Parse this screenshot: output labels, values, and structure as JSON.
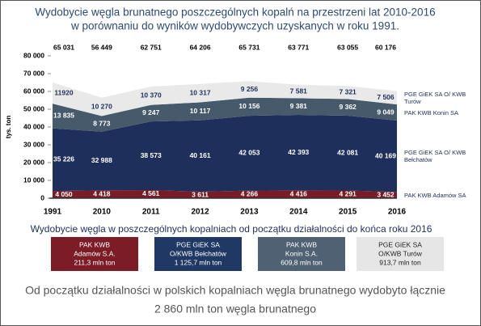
{
  "chart_data": {
    "type": "stacked-area",
    "title": [
      "Wydobycie węgla brunatnego poszczególnych kopalń na przestrzeni lat 2010-2016",
      "w porównaniu do wyników wydobywczych uzyskanych w roku 1991."
    ],
    "y_label": "tys. ton",
    "categories": [
      "1991",
      "2010",
      "2011",
      "2012",
      "2013",
      "2014",
      "2015",
      "2016"
    ],
    "series": [
      {
        "name": "PAK KWB Adamów SA",
        "color": "#7a1c25",
        "label_color": "#ffffff",
        "values": [
          4050,
          4418,
          4561,
          3611,
          4266,
          4416,
          4291,
          3452
        ],
        "value_labels": [
          "4 050",
          "4 418",
          "4 561",
          "3 611",
          "4 266",
          "4 416",
          "4 291",
          "3 452"
        ]
      },
      {
        "name": "PGE GiEK SA O/ KWB Bełchatów",
        "color": "#1f2f5c",
        "label_color": "#ffffff",
        "values": [
          35226,
          32988,
          38573,
          40161,
          42053,
          42393,
          42081,
          40169
        ],
        "value_labels": [
          "35 226",
          "32 988",
          "38 573",
          "40 161",
          "42 053",
          "42 393",
          "42 081",
          "40 169"
        ]
      },
      {
        "name": "PAK KWB Konin SA",
        "color": "#475a6c",
        "label_color": "#ffffff",
        "values": [
          13835,
          8773,
          9247,
          10117,
          10156,
          9381,
          9362,
          9049
        ],
        "value_labels": [
          "13 835",
          "8 773",
          "9 247",
          "10 117",
          "10 156",
          "9 381",
          "9 362",
          "9 049"
        ]
      },
      {
        "name": "PGE GiEK SA O/ KWB Turów",
        "color": "#e9e9e9",
        "label_color": "#1f2f5c",
        "values": [
          11920,
          10270,
          10370,
          10317,
          9256,
          7581,
          7321,
          7506
        ],
        "value_labels": [
          "11920",
          "10 270",
          "10 370",
          "10 317",
          "9 256",
          "7 581",
          "7 321",
          "7 506"
        ]
      }
    ],
    "totals": {
      "values": [
        65031,
        56449,
        62751,
        64206,
        65731,
        63771,
        63055,
        60176
      ],
      "value_labels": [
        "65 031",
        "56 449",
        "62 751",
        "64 206",
        "65 731",
        "63 771",
        "63 055",
        "60 176"
      ]
    },
    "ylim": [
      0,
      80000
    ],
    "yticks": [
      0,
      {
        "value": 10000,
        "label": "10 000"
      },
      {
        "value": 20000,
        "label": "20 000"
      },
      {
        "value": 30000,
        "label": "30 000"
      },
      {
        "value": 40000,
        "label": "40 000"
      },
      {
        "value": 50000,
        "label": "50 000"
      },
      {
        "value": 60000,
        "label": "60 000"
      },
      {
        "value": 70000,
        "label": "70 000"
      },
      {
        "value": 80000,
        "label": "80 000"
      }
    ],
    "grid": false
  },
  "summary": {
    "title": "Wydobycie węgla w poszczególnych kopalniach od początku działalności do końca roku 2016",
    "boxes": [
      {
        "lines": [
          "PAK KWB",
          "Adamów S.A.",
          "211,3 mln ton"
        ],
        "color": "#7b1c27",
        "text_color": "#ffffff"
      },
      {
        "lines": [
          "PGE GiEK SA",
          "O/KWB Bełchatów",
          "1 125,7 mln ton"
        ],
        "color": "#1f3864",
        "text_color": "#ffffff"
      },
      {
        "lines": [
          "PAK KWB",
          "Konin S.A.",
          "609,8 mln ton"
        ],
        "color": "#4f6172",
        "text_color": "#ffffff"
      },
      {
        "lines": [
          "PGE GiEK SA",
          "O/KWB Turów",
          "913,7 mln ton"
        ],
        "color": "#e6e6e6",
        "text_color": "#222222"
      }
    ]
  },
  "footer": [
    "Od początku działalności w polskich kopalniach węgla brunatnego wydobyto łącznie",
    "2 860 mln ton węgla brunatnego"
  ]
}
